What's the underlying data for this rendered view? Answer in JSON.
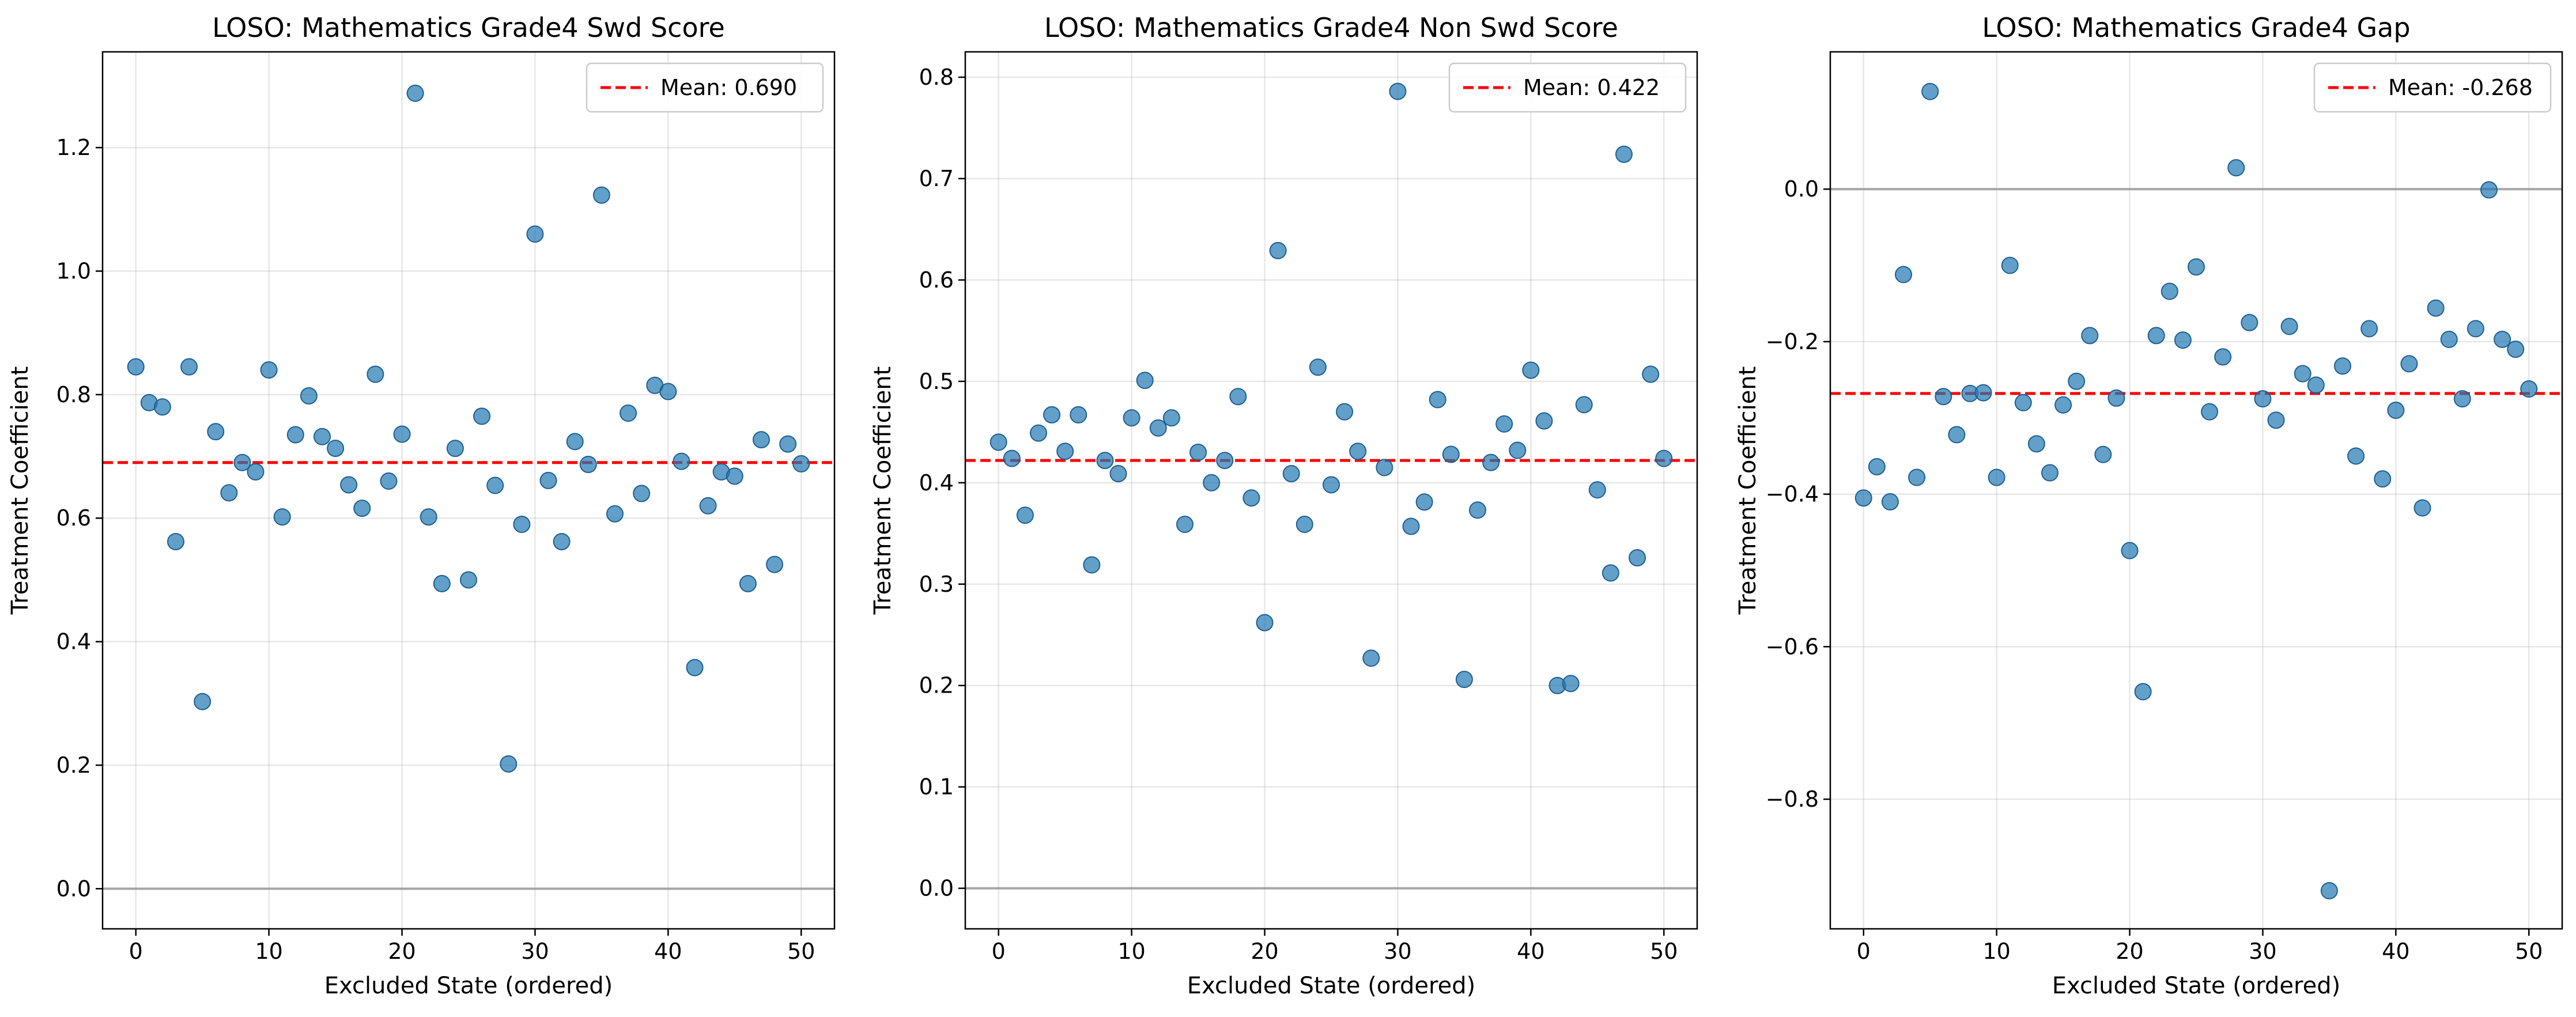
{
  "figure": {
    "background": "#ffffff"
  },
  "chart_data": [
    {
      "type": "scatter",
      "title": "LOSO: Mathematics Grade4 Swd Score",
      "xlabel": "Excluded State (ordered)",
      "ylabel": "Treatment Coefficient",
      "xlim": [
        -2.5,
        52.5
      ],
      "ylim": [
        -0.065,
        1.355
      ],
      "xticks": [
        0,
        10,
        20,
        30,
        40,
        50
      ],
      "xtick_labels": [
        "0",
        "10",
        "20",
        "30",
        "40",
        "50"
      ],
      "yticks": [
        0.0,
        0.2,
        0.4,
        0.6,
        0.8,
        1.0,
        1.2
      ],
      "ytick_labels": [
        "0.0",
        "0.2",
        "0.4",
        "0.6",
        "0.8",
        "1.0",
        "1.2"
      ],
      "grid": true,
      "zero_line": 0,
      "mean": 0.69,
      "legend": {
        "label": "Mean: 0.690",
        "position": "top-right"
      },
      "colors": {
        "points": "#1f77b4",
        "mean": "#ff0000",
        "zero": "#999999"
      },
      "x": [
        0,
        1,
        2,
        3,
        4,
        5,
        6,
        7,
        8,
        9,
        10,
        11,
        12,
        13,
        14,
        15,
        16,
        17,
        18,
        19,
        20,
        21,
        22,
        23,
        24,
        25,
        26,
        27,
        28,
        29,
        30,
        31,
        32,
        33,
        34,
        35,
        36,
        37,
        38,
        39,
        40,
        41,
        42,
        43,
        44,
        45,
        46,
        47,
        48,
        49,
        50
      ],
      "y": [
        0.845,
        0.787,
        0.78,
        0.562,
        0.845,
        0.303,
        0.74,
        0.641,
        0.69,
        0.675,
        0.84,
        0.602,
        0.735,
        0.798,
        0.732,
        0.713,
        0.654,
        0.616,
        0.833,
        0.66,
        0.736,
        1.288,
        0.602,
        0.494,
        0.713,
        0.5,
        0.765,
        0.653,
        0.202,
        0.59,
        1.06,
        0.661,
        0.562,
        0.724,
        0.687,
        1.123,
        0.607,
        0.77,
        0.64,
        0.815,
        0.805,
        0.692,
        0.358,
        0.62,
        0.675,
        0.668,
        0.494,
        0.727,
        0.525,
        0.72,
        0.688
      ]
    },
    {
      "type": "scatter",
      "title": "LOSO: Mathematics Grade4 Non Swd Score",
      "xlabel": "Excluded State (ordered)",
      "ylabel": "Treatment Coefficient",
      "xlim": [
        -2.5,
        52.5
      ],
      "ylim": [
        -0.04,
        0.825
      ],
      "xticks": [
        0,
        10,
        20,
        30,
        40,
        50
      ],
      "xtick_labels": [
        "0",
        "10",
        "20",
        "30",
        "40",
        "50"
      ],
      "yticks": [
        0.0,
        0.1,
        0.2,
        0.3,
        0.4,
        0.5,
        0.6,
        0.7,
        0.8
      ],
      "ytick_labels": [
        "0.0",
        "0.1",
        "0.2",
        "0.3",
        "0.4",
        "0.5",
        "0.6",
        "0.7",
        "0.8"
      ],
      "grid": true,
      "zero_line": 0,
      "mean": 0.422,
      "legend": {
        "label": "Mean: 0.422",
        "position": "top-right"
      },
      "colors": {
        "points": "#1f77b4",
        "mean": "#ff0000",
        "zero": "#999999"
      },
      "x": [
        0,
        1,
        2,
        3,
        4,
        5,
        6,
        7,
        8,
        9,
        10,
        11,
        12,
        13,
        14,
        15,
        16,
        17,
        18,
        19,
        20,
        21,
        22,
        23,
        24,
        25,
        26,
        27,
        28,
        29,
        30,
        31,
        32,
        33,
        34,
        35,
        36,
        37,
        38,
        39,
        40,
        41,
        42,
        43,
        44,
        45,
        46,
        47,
        48,
        49,
        50
      ],
      "y": [
        0.44,
        0.424,
        0.368,
        0.449,
        0.467,
        0.431,
        0.467,
        0.319,
        0.422,
        0.409,
        0.464,
        0.501,
        0.454,
        0.464,
        0.359,
        0.43,
        0.4,
        0.422,
        0.485,
        0.385,
        0.262,
        0.629,
        0.409,
        0.359,
        0.514,
        0.398,
        0.47,
        0.431,
        0.227,
        0.415,
        0.786,
        0.357,
        0.381,
        0.482,
        0.428,
        0.206,
        0.373,
        0.42,
        0.458,
        0.432,
        0.511,
        0.461,
        0.2,
        0.202,
        0.477,
        0.393,
        0.311,
        0.724,
        0.326,
        0.507,
        0.424
      ]
    },
    {
      "type": "scatter",
      "title": "LOSO: Mathematics Grade4 Gap",
      "xlabel": "Excluded State (ordered)",
      "ylabel": "Treatment Coefficient",
      "xlim": [
        -2.5,
        52.5
      ],
      "ylim": [
        -0.97,
        0.18
      ],
      "xticks": [
        0,
        10,
        20,
        30,
        40,
        50
      ],
      "xtick_labels": [
        "0",
        "10",
        "20",
        "30",
        "40",
        "50"
      ],
      "yticks": [
        -0.8,
        -0.6,
        -0.4,
        -0.2,
        0.0
      ],
      "ytick_labels": [
        "−0.8",
        "−0.6",
        "−0.4",
        "−0.2",
        "0.0"
      ],
      "grid": true,
      "zero_line": 0,
      "mean": -0.268,
      "legend": {
        "label": "Mean: -0.268",
        "position": "top-right"
      },
      "colors": {
        "points": "#1f77b4",
        "mean": "#ff0000",
        "zero": "#999999"
      },
      "x": [
        0,
        1,
        2,
        3,
        4,
        5,
        6,
        7,
        8,
        9,
        10,
        11,
        12,
        13,
        14,
        15,
        16,
        17,
        18,
        19,
        20,
        21,
        22,
        23,
        24,
        25,
        26,
        27,
        28,
        29,
        30,
        31,
        32,
        33,
        34,
        35,
        36,
        37,
        38,
        39,
        40,
        41,
        42,
        43,
        44,
        45,
        46,
        47,
        48,
        49,
        50
      ],
      "y": [
        -0.405,
        -0.364,
        -0.41,
        -0.112,
        -0.378,
        0.128,
        -0.272,
        -0.322,
        -0.268,
        -0.267,
        -0.378,
        -0.1,
        -0.28,
        -0.334,
        -0.372,
        -0.283,
        -0.252,
        -0.192,
        -0.348,
        -0.274,
        -0.474,
        -0.659,
        -0.192,
        -0.134,
        -0.198,
        -0.102,
        -0.292,
        -0.22,
        0.028,
        -0.175,
        -0.275,
        -0.303,
        -0.18,
        -0.242,
        -0.257,
        -0.92,
        -0.232,
        -0.35,
        -0.183,
        -0.38,
        -0.29,
        -0.229,
        -0.418,
        -0.156,
        -0.197,
        -0.275,
        -0.183,
        -0.001,
        -0.197,
        -0.21,
        -0.262
      ]
    }
  ]
}
